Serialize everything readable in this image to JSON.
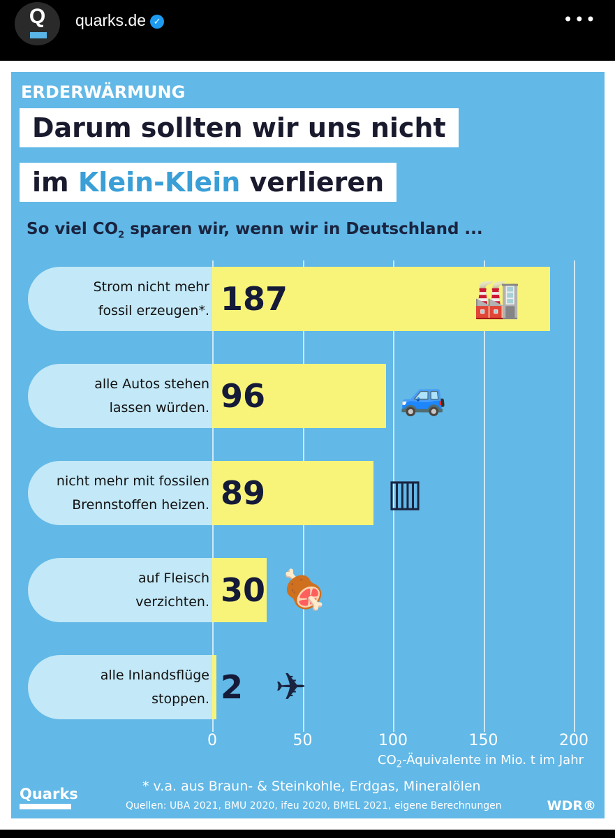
{
  "header": {
    "avatar_letter": "Q",
    "username": "quarks.de",
    "verified_icon": "verified-badge-icon",
    "more_label": "•••"
  },
  "infographic": {
    "kicker": "ERDERWÄRMUNG",
    "title_line1": "Darum sollten wir uns nicht",
    "title_line2_pre": "im ",
    "title_line2_hl": "Klein-Klein",
    "title_line2_post": " verlieren",
    "subtitle_pre": "So viel CO",
    "subtitle_sub": "2",
    "subtitle_post": " sparen wir, wenn wir in Deutschland ...",
    "footnote": "* v.a. aus Braun- & Steinkohle, Erdgas, Mineralölen",
    "sources": "Quellen: UBA 2021, BMU 2020, ifeu 2020, BMEL 2021, eigene Berechnungen",
    "logo_left": "Quarks",
    "logo_right": "WDR®",
    "colors": {
      "background": "#62b8e6",
      "bar": "#f8f47a",
      "label_pill": "#c3e8f7"
    }
  },
  "chart_data": {
    "type": "bar",
    "orientation": "horizontal",
    "categories": [
      {
        "line1": "Strom nicht mehr",
        "line2": "fossil erzeugen*.",
        "icon": "factory-icon"
      },
      {
        "line1": "alle Autos stehen",
        "line2": "lassen würden.",
        "icon": "car-icon"
      },
      {
        "line1": "nicht mehr mit fossilen",
        "line2": "Brennstoffen heizen.",
        "icon": "radiator-icon"
      },
      {
        "line1": "auf Fleisch",
        "line2": "verzichten.",
        "icon": "steak-plate-icon"
      },
      {
        "line1": "alle Inlandsflüge",
        "line2": "stoppen.",
        "icon": "airplane-icon"
      }
    ],
    "values": [
      187,
      96,
      89,
      30,
      2
    ],
    "xlim": [
      0,
      200
    ],
    "xticks": [
      "0",
      "50",
      "100",
      "150",
      "200"
    ],
    "xlabel_pre": "CO",
    "xlabel_sub": "2",
    "xlabel_post": "-Äquivalente in Mio. t im Jahr",
    "grid": true
  }
}
